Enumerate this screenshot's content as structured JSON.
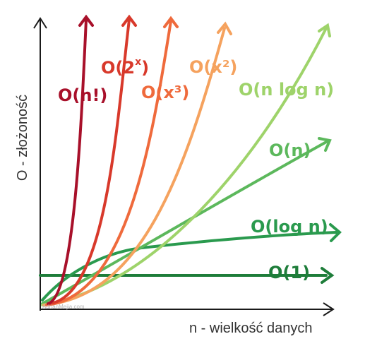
{
  "axes": {
    "x_label": "n - wielkość danych",
    "y_label": "O - złożoność"
  },
  "watermark": "AdrianMejia.com",
  "curves": [
    {
      "id": "factorial",
      "label": "O(n!)",
      "color": "#a8102a"
    },
    {
      "id": "exponential",
      "label_main": "O(2",
      "label_sup": "x",
      "label_end": ")",
      "color": "#d8392b"
    },
    {
      "id": "cubic",
      "label": "O(x³)",
      "color": "#ef6a3c"
    },
    {
      "id": "quadratic",
      "label": "O(x²)",
      "color": "#f5a25e"
    },
    {
      "id": "nlogn",
      "label": "O(n log n)",
      "color": "#9ed36a"
    },
    {
      "id": "linear",
      "label": "O(n)",
      "color": "#5cb85c"
    },
    {
      "id": "logn",
      "label": "O(log n)",
      "color": "#2a9a4e"
    },
    {
      "id": "constant",
      "label": "O(1)",
      "color": "#1e7d3a"
    }
  ]
}
